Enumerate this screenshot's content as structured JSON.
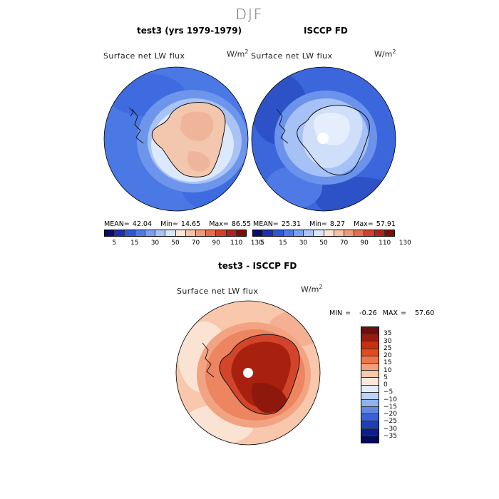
{
  "season": "DJF",
  "panels": [
    {
      "title": "test3 (yrs 1979-1979)",
      "field": "Surface net LW flux",
      "units_base": "W/m",
      "units_exp": "2",
      "stats": {
        "mean_label": "MEAN=",
        "mean": "42.04",
        "min_label": "Min=",
        "min": "14.65",
        "max_label": "Max=",
        "max": "86.55"
      }
    },
    {
      "title": "ISCCP FD",
      "field": "Surface net LW flux",
      "units_base": "W/m",
      "units_exp": "2",
      "stats": {
        "mean_label": "MEAN=",
        "mean": "25.31",
        "min_label": "Min=",
        "min": "8.27",
        "max_label": "Max=",
        "max": "57.91"
      }
    }
  ],
  "shared_colorbar": {
    "colors": [
      "#0b0b6e",
      "#1a30b8",
      "#2f56d8",
      "#4f7ae6",
      "#7aa0f0",
      "#a8c4f7",
      "#d7e6fb",
      "#fbe6d6",
      "#f6c2a8",
      "#ef9a78",
      "#e46f4f",
      "#d2402b",
      "#b1201a",
      "#7e0a0a"
    ],
    "tick_labels": [
      "5",
      "15",
      "30",
      "50",
      "70",
      "90",
      "110",
      "130"
    ]
  },
  "diff_panel": {
    "title": "test3 - ISCCP FD",
    "field": "Surface net LW flux",
    "units_base": "W/m",
    "units_exp": "2",
    "minmax": "MIN =   -0.26  MAX =   57.60"
  },
  "diff_colorbar": {
    "colors": [
      "#6b0f0f",
      "#9a1c0e",
      "#c8300f",
      "#e24c1c",
      "#f0764a",
      "#f5a07a",
      "#f9c8ad",
      "#fde8db",
      "#e4ecfa",
      "#bcd3f5",
      "#8fb1ee",
      "#5f88e2",
      "#3a62d6",
      "#1e3fb8",
      "#0a1f8c",
      "#04095e"
    ],
    "labels": [
      "35",
      "30",
      "25",
      "20",
      "15",
      "10",
      "5",
      "0",
      "−5",
      "−10",
      "−15",
      "−20",
      "−25",
      "−30",
      "−35"
    ]
  }
}
